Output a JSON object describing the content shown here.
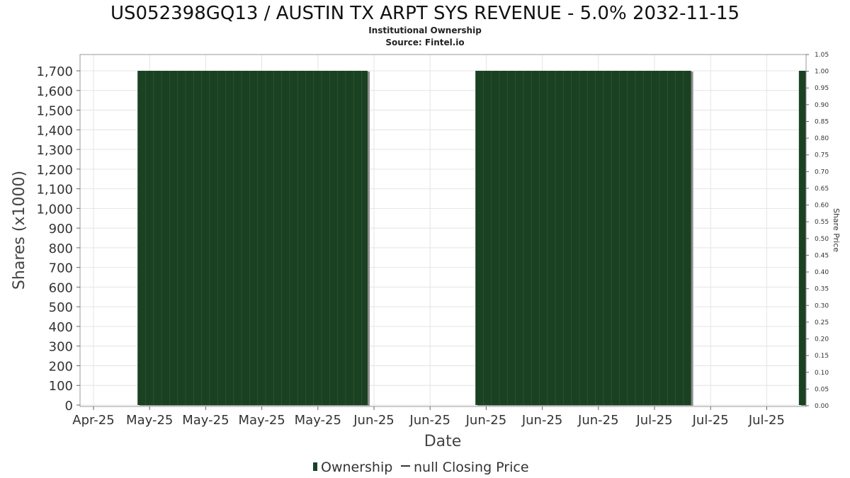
{
  "chart_data": {
    "type": "bar",
    "title": "US052398GQ13 / AUSTIN TX ARPT SYS REVENUE - 5.0% 2032-11-15",
    "subtitle_lines": [
      "Institutional Ownership",
      "Source: Fintel.io"
    ],
    "xlabel": "Date",
    "ylabel": "Shares (x1000)",
    "y2label": "Share Price",
    "x_tick_labels": [
      "Apr-25",
      "May-25",
      "May-25",
      "May-25",
      "May-25",
      "Jun-25",
      "Jun-25",
      "Jun-25",
      "Jun-25",
      "Jun-25",
      "Jul-25",
      "Jul-25",
      "Jul-25"
    ],
    "y_tick_labels": [
      "0",
      "100",
      "200",
      "300",
      "400",
      "500",
      "600",
      "700",
      "800",
      "900",
      "1,000",
      "1,100",
      "1,200",
      "1,300",
      "1,400",
      "1,500",
      "1,600",
      "1,700"
    ],
    "y2_tick_labels": [
      "0.00",
      "0.05",
      "0.10",
      "0.15",
      "0.20",
      "0.25",
      "0.30",
      "0.35",
      "0.40",
      "0.45",
      "0.50",
      "0.55",
      "0.60",
      "0.65",
      "0.70",
      "0.75",
      "0.80",
      "0.85",
      "0.90",
      "0.95",
      "1.00",
      "1.05"
    ],
    "ylim": [
      0,
      1785
    ],
    "y2lim": [
      0,
      1.05
    ],
    "x_domain": [
      "2025-04-18",
      "2025-07-28"
    ],
    "series": [
      {
        "name": "Ownership",
        "kind": "bar",
        "color": "#1a4122",
        "segments": [
          {
            "start": "2025-04-26",
            "end": "2025-05-28",
            "value": 1700
          },
          {
            "start": "2025-06-12",
            "end": "2025-07-12",
            "value": 1700
          },
          {
            "start": "2025-07-27",
            "end": "2025-08-27",
            "value": 1700
          }
        ]
      },
      {
        "name": "null Closing Price",
        "kind": "line",
        "color": "#333333",
        "values": []
      }
    ],
    "grid": true,
    "legend_position": "bottom"
  }
}
